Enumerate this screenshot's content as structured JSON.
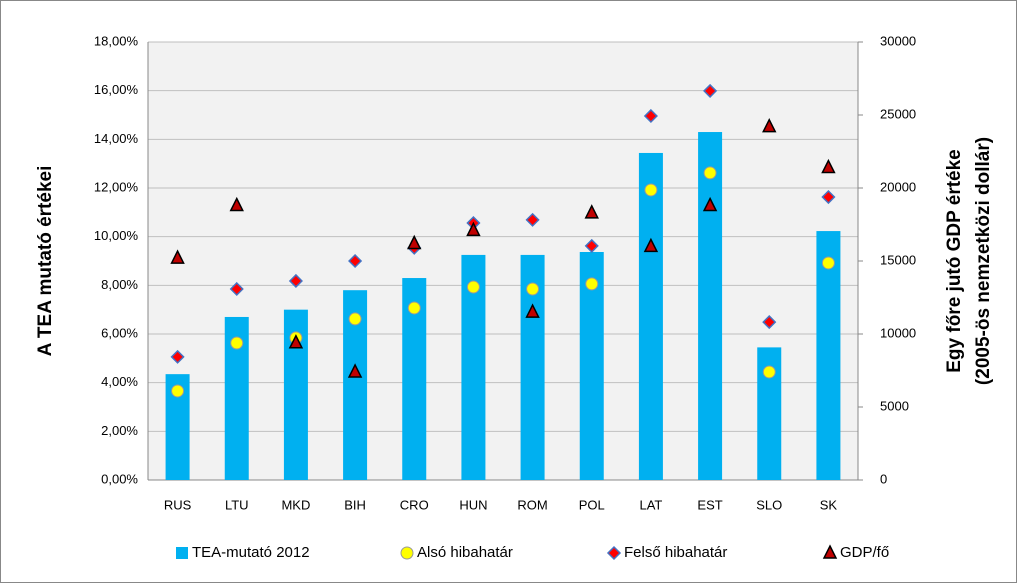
{
  "chart_data": {
    "type": "bar",
    "categories": [
      "RUS",
      "LTU",
      "MKD",
      "BIH",
      "CRO",
      "HUN",
      "ROM",
      "POL",
      "LAT",
      "EST",
      "SLO",
      "SK"
    ],
    "series": [
      {
        "name": "TEA-mutató 2012",
        "color": "#00b0f0",
        "marker": "bar",
        "values": [
          4.35,
          6.7,
          7.0,
          7.8,
          8.3,
          9.25,
          9.25,
          9.37,
          13.44,
          14.3,
          5.45,
          10.23
        ]
      },
      {
        "name": "Alsó hibahatár",
        "color": "#ffff00",
        "marker": "circle",
        "values": [
          3.66,
          5.63,
          5.84,
          6.62,
          7.07,
          7.93,
          7.85,
          8.06,
          11.92,
          12.62,
          4.44,
          8.92
        ]
      },
      {
        "name": "Felső hibahatár",
        "color": "#ff0000",
        "marker": "diamond",
        "values": [
          5.06,
          7.85,
          8.18,
          9.0,
          9.54,
          10.56,
          10.69,
          9.62,
          14.96,
          15.99,
          6.49,
          11.63
        ]
      },
      {
        "name": "GDP/fő",
        "color": "#c00000",
        "marker": "triangle",
        "axis": "y2",
        "values": [
          15200,
          18800,
          9400,
          7400,
          16200,
          17100,
          11500,
          18300,
          16000,
          18800,
          24200,
          21400
        ]
      }
    ],
    "ylabel": "A TEA mutató értékei",
    "y2label": [
      "Egy főre jutó GDP értéke",
      "(2005-ös nemzetközi dollár)"
    ],
    "ylim": [
      0,
      18
    ],
    "yticks": [
      {
        "value": 0,
        "label": "0,00%"
      },
      {
        "value": 2,
        "label": "2,00%"
      },
      {
        "value": 4,
        "label": "4,00%"
      },
      {
        "value": 6,
        "label": "6,00%"
      },
      {
        "value": 8,
        "label": "8,00%"
      },
      {
        "value": 10,
        "label": "10,00%"
      },
      {
        "value": 12,
        "label": "12,00%"
      },
      {
        "value": 14,
        "label": "14,00%"
      },
      {
        "value": 16,
        "label": "16,00%"
      },
      {
        "value": 18,
        "label": "18,00%"
      }
    ],
    "y2lim": [
      0,
      30000
    ],
    "y2ticks": [
      0,
      5000,
      10000,
      15000,
      20000,
      25000,
      30000
    ],
    "grid": true,
    "legend": "bottom"
  }
}
